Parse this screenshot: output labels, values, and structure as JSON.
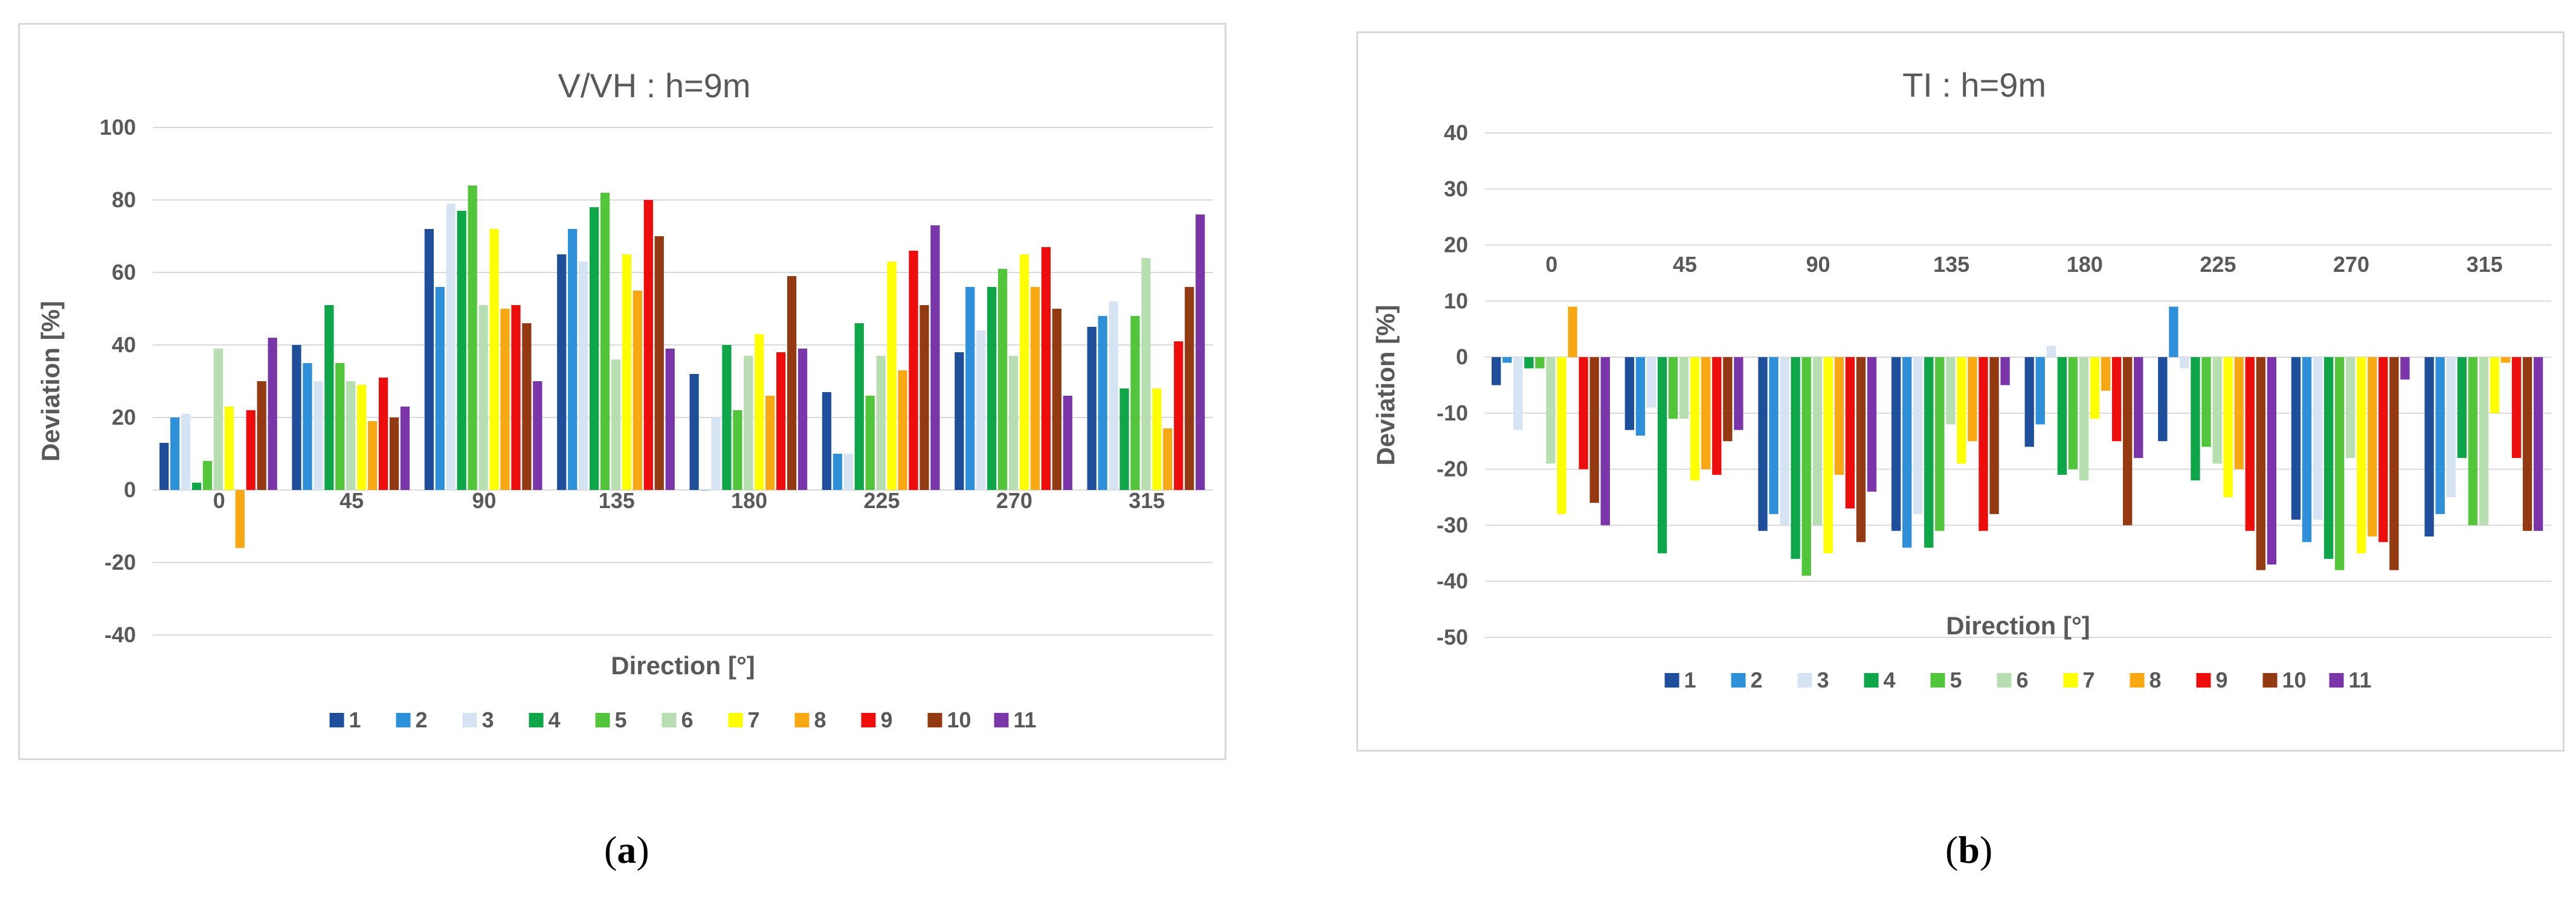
{
  "subcaptions": {
    "a": "a",
    "b": "b"
  },
  "chart_data": [
    {
      "type": "bar",
      "title": "V/VH : h=9m",
      "xlabel": "Direction [°]",
      "ylabel": "Deviation [%]",
      "ylim": [
        -40,
        100
      ],
      "ytick_step": 20,
      "grid": true,
      "legend_position": "bottom",
      "categories": [
        "0",
        "45",
        "90",
        "135",
        "180",
        "225",
        "270",
        "315"
      ],
      "series": [
        {
          "name": "1",
          "color": "#1f4e9a",
          "values": [
            13,
            40,
            72,
            65,
            32,
            27,
            38,
            45
          ]
        },
        {
          "name": "2",
          "color": "#2e90d8",
          "values": [
            20,
            35,
            56,
            72,
            0,
            10,
            56,
            48
          ]
        },
        {
          "name": "3",
          "color": "#d6e3f2",
          "values": [
            21,
            30,
            79,
            63,
            20,
            10,
            44,
            52
          ]
        },
        {
          "name": "4",
          "color": "#0fa64a",
          "values": [
            2,
            51,
            77,
            78,
            40,
            46,
            56,
            28
          ]
        },
        {
          "name": "5",
          "color": "#52c53a",
          "values": [
            8,
            35,
            84,
            82,
            22,
            26,
            61,
            48
          ]
        },
        {
          "name": "6",
          "color": "#b6deb0",
          "values": [
            39,
            30,
            51,
            36,
            37,
            37,
            37,
            64
          ]
        },
        {
          "name": "7",
          "color": "#ffff00",
          "values": [
            23,
            29,
            72,
            65,
            43,
            63,
            65,
            28
          ]
        },
        {
          "name": "8",
          "color": "#f7a813",
          "values": [
            -16,
            19,
            50,
            55,
            26,
            33,
            56,
            17
          ]
        },
        {
          "name": "9",
          "color": "#ee0d0d",
          "values": [
            22,
            31,
            51,
            80,
            38,
            66,
            67,
            41
          ]
        },
        {
          "name": "10",
          "color": "#943a12",
          "values": [
            30,
            20,
            46,
            70,
            59,
            51,
            50,
            56
          ]
        },
        {
          "name": "11",
          "color": "#7a35a8",
          "values": [
            42,
            23,
            30,
            39,
            39,
            73,
            26,
            76
          ]
        }
      ]
    },
    {
      "type": "bar",
      "title": "TI : h=9m",
      "xlabel": "Direction [°]",
      "ylabel": "Deviation [%]",
      "ylim": [
        -50,
        40
      ],
      "ytick_step": 10,
      "grid": true,
      "legend_position": "bottom",
      "categories": [
        "0",
        "45",
        "90",
        "135",
        "180",
        "225",
        "270",
        "315"
      ],
      "series": [
        {
          "name": "1",
          "color": "#1f4e9a",
          "values": [
            -5,
            -13,
            -31,
            -31,
            -16,
            -15,
            -29,
            -32
          ]
        },
        {
          "name": "2",
          "color": "#2e90d8",
          "values": [
            -1,
            -14,
            -28,
            -34,
            -12,
            9,
            -33,
            -28
          ]
        },
        {
          "name": "3",
          "color": "#d6e3f2",
          "values": [
            -13,
            -9,
            -30,
            -28,
            2,
            -2,
            -29,
            -25
          ]
        },
        {
          "name": "4",
          "color": "#0fa64a",
          "values": [
            -2,
            -35,
            -36,
            -34,
            -21,
            -22,
            -36,
            -18
          ]
        },
        {
          "name": "5",
          "color": "#52c53a",
          "values": [
            -2,
            -11,
            -39,
            -31,
            -20,
            -16,
            -38,
            -30
          ]
        },
        {
          "name": "6",
          "color": "#b6deb0",
          "values": [
            -19,
            -11,
            -30,
            -12,
            -22,
            -19,
            -18,
            -30
          ]
        },
        {
          "name": "7",
          "color": "#ffff00",
          "values": [
            -28,
            -22,
            -35,
            -19,
            -11,
            -25,
            -35,
            -10
          ]
        },
        {
          "name": "8",
          "color": "#f7a813",
          "values": [
            9,
            -20,
            -21,
            -15,
            -6,
            -20,
            -32,
            -1
          ]
        },
        {
          "name": "9",
          "color": "#ee0d0d",
          "values": [
            -20,
            -21,
            -27,
            -31,
            -15,
            -31,
            -33,
            -18
          ]
        },
        {
          "name": "10",
          "color": "#943a12",
          "values": [
            -26,
            -15,
            -33,
            -28,
            -30,
            -38,
            -38,
            -31
          ]
        },
        {
          "name": "11",
          "color": "#7a35a8",
          "values": [
            -30,
            -13,
            -24,
            -5,
            -18,
            -37,
            -4,
            -31
          ]
        }
      ]
    }
  ]
}
